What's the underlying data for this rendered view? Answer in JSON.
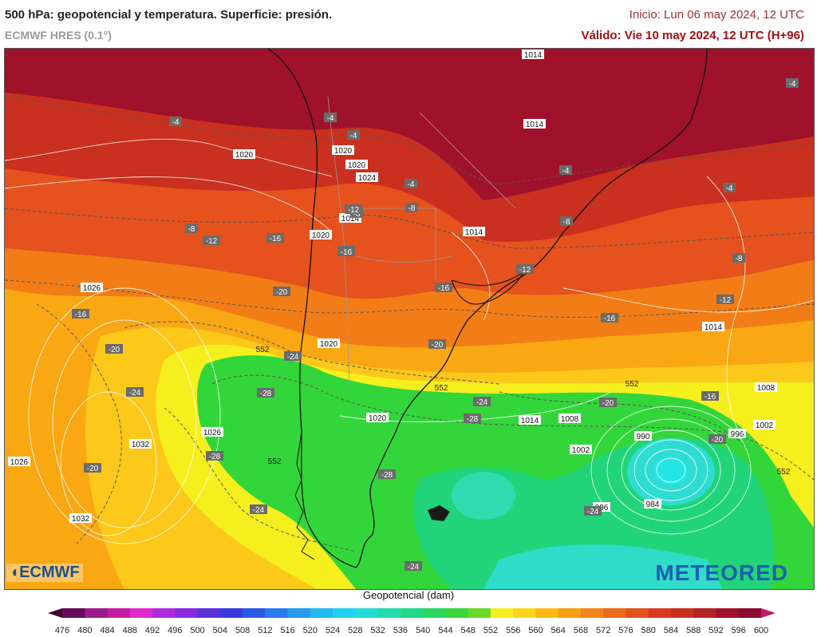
{
  "header": {
    "title": "500 hPa: geopotencial y temperatura. Superficie: presión.",
    "model": "ECMWF HRES (0.1°)",
    "init": "Inicio: Lun 06 may 2024, 12 UTC",
    "valid": "Válido: Vie 10 may 2024, 12 UTC (H+96)"
  },
  "colors": {
    "dark_red": "#a0122a",
    "red": "#c9301f",
    "orange_red": "#e5521d",
    "orange": "#f27d16",
    "amber": "#f9a814",
    "yellow_orange": "#fcc81a",
    "yellow": "#f6ef1e",
    "green": "#33d63a",
    "green_teal": "#21d47a",
    "cyan": "#2fdcd2",
    "coast": "#111111",
    "isobar": "#ffffff",
    "isotherm": "#555555"
  },
  "map": {
    "pressure_labels": [
      "1014",
      "1014",
      "1020",
      "1020",
      "1020",
      "1024",
      "1014",
      "1014",
      "1020",
      "1026",
      "1020",
      "1020",
      "1014",
      "1008",
      "1008",
      "1002",
      "996",
      "990",
      "1002",
      "984",
      "996",
      "1032",
      "1026",
      "1026",
      "1032",
      "1014"
    ],
    "temp_labels": [
      "-4",
      "-4",
      "-4",
      "-4",
      "-4",
      "-4",
      "-4",
      "-8",
      "-8",
      "-8",
      "-8",
      "-8",
      "-12",
      "-12",
      "-12",
      "-12",
      "-12",
      "-16",
      "-16",
      "-16",
      "-16",
      "-16",
      "-16",
      "-20",
      "-20",
      "-20",
      "-20",
      "-20",
      "-20",
      "-24",
      "-24",
      "-24",
      "-24",
      "-24",
      "-24",
      "-28",
      "-28",
      "-28",
      "-28"
    ],
    "geo_labels": [
      "552",
      "552",
      "552",
      "552",
      "552"
    ]
  },
  "legend": {
    "title": "Geopotencial (dam)",
    "values": [
      "476",
      "480",
      "484",
      "488",
      "492",
      "496",
      "500",
      "504",
      "508",
      "512",
      "516",
      "520",
      "524",
      "528",
      "532",
      "536",
      "540",
      "544",
      "548",
      "552",
      "556",
      "560",
      "564",
      "568",
      "572",
      "576",
      "580",
      "584",
      "588",
      "592",
      "596",
      "600"
    ],
    "colors": [
      "#3a0a2a",
      "#6a0a5a",
      "#9a1a8a",
      "#c41aa8",
      "#e02ad0",
      "#b02ae0",
      "#8a2ae0",
      "#5a32d8",
      "#3a3ae0",
      "#2a5ae6",
      "#2a7af0",
      "#2a9af0",
      "#22b8f0",
      "#22d0f0",
      "#22dcd8",
      "#22dcb0",
      "#22d888",
      "#2ad860",
      "#3ad63a",
      "#6ad82a",
      "#f6ef1e",
      "#fcd41a",
      "#fcb814",
      "#f8a014",
      "#f4841a",
      "#ee6a1c",
      "#e5521d",
      "#d93a1f",
      "#c9301f",
      "#b42224",
      "#a0122a",
      "#8a0a30",
      "#c0186a"
    ]
  },
  "logos": {
    "ecmwf": "ECMWF",
    "meteored": "METEORED"
  }
}
